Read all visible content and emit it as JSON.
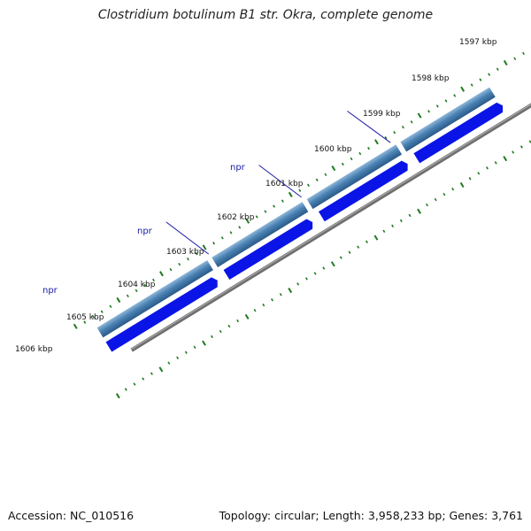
{
  "title": "Clostridium botulinum B1 str. Okra, complete genome",
  "footer": {
    "accession": "Accession: NC_010516",
    "summary": "Topology: circular; Length: 3,958,233 bp; Genes: 3,761"
  },
  "scale_labels": [
    "1597 kbp",
    "1598 kbp",
    "1599 kbp",
    "1600 kbp",
    "1601 kbp",
    "1602 kbp",
    "1603 kbp",
    "1604 kbp",
    "1605 kbp",
    "1606 kbp"
  ],
  "gene_labels": [
    "npr",
    "npr",
    "npr"
  ],
  "colors": {
    "backbone": "#7a7a7a",
    "ticks": "#1f7a1f",
    "gene_outer": "#4a82b4",
    "gene_inner": "#0a14e6",
    "feature_red": "#e60000",
    "feature_olive": "#b0aa70",
    "gene_label": "#1a1aa8"
  }
}
